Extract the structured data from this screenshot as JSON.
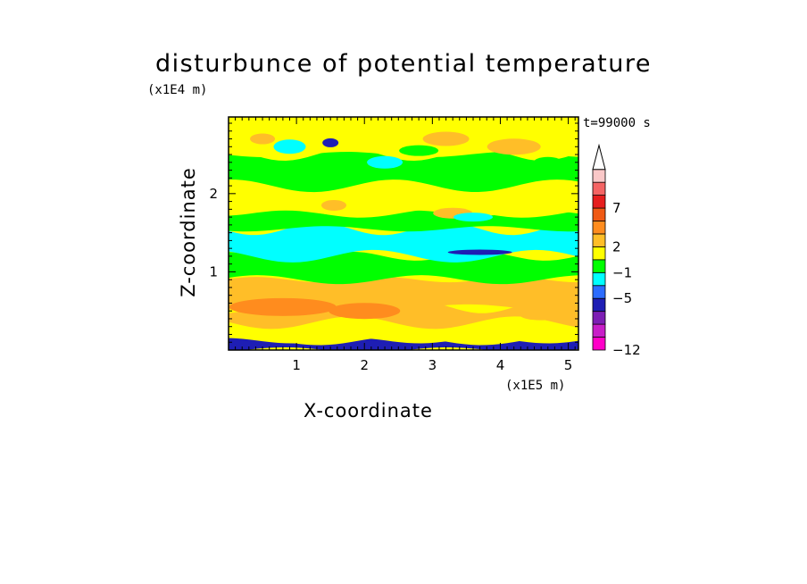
{
  "figure": {
    "title": "disturbunce of potential temperature",
    "y_scale_note": "(x1E4 m)",
    "x_scale_note": "(x1E5 m)",
    "time_label": "t=99000 s"
  },
  "chart_data": {
    "type": "heatmap",
    "title": "disturbunce of potential temperature",
    "xlabel": "X-coordinate",
    "ylabel": "Z-coordinate",
    "x_unit": "x1E5 m",
    "y_unit": "x1E4 m",
    "xlim": [
      0,
      5.15
    ],
    "ylim": [
      0,
      2.98
    ],
    "x_ticks": [
      1,
      2,
      3,
      4,
      5
    ],
    "y_ticks": [
      1,
      2
    ],
    "colorbar": {
      "tick_labels": [
        "7",
        "2",
        "-1",
        "-5",
        "-12"
      ],
      "colors": [
        "#ff00c8",
        "#c81ec8",
        "#7d1eb4",
        "#1e1eb4",
        "#2c6cff",
        "#00ffff",
        "#00ff00",
        "#ffff00",
        "#ffbe28",
        "#ff8c1e",
        "#f05a14",
        "#e61e1e",
        "#f46464",
        "#fac8c8"
      ],
      "extend": "max"
    },
    "bands": [
      {
        "z_from": 0.0,
        "z_to": 0.12,
        "level": "blue"
      },
      {
        "z_from": 0.12,
        "z_to": 0.35,
        "level": "yellow"
      },
      {
        "z_from": 0.35,
        "z_to": 0.55,
        "level": "light-orange"
      },
      {
        "z_from": 0.55,
        "z_to": 0.9,
        "level": "light-orange"
      },
      {
        "z_from": 0.9,
        "z_to": 1.2,
        "level": "green"
      },
      {
        "z_from": 1.2,
        "z_to": 1.55,
        "level": "cyan"
      },
      {
        "z_from": 1.55,
        "z_to": 1.75,
        "level": "green"
      },
      {
        "z_from": 1.75,
        "z_to": 2.1,
        "level": "yellow"
      },
      {
        "z_from": 2.1,
        "z_to": 2.5,
        "level": "green"
      },
      {
        "z_from": 2.5,
        "z_to": 2.98,
        "level": "yellow"
      }
    ]
  }
}
